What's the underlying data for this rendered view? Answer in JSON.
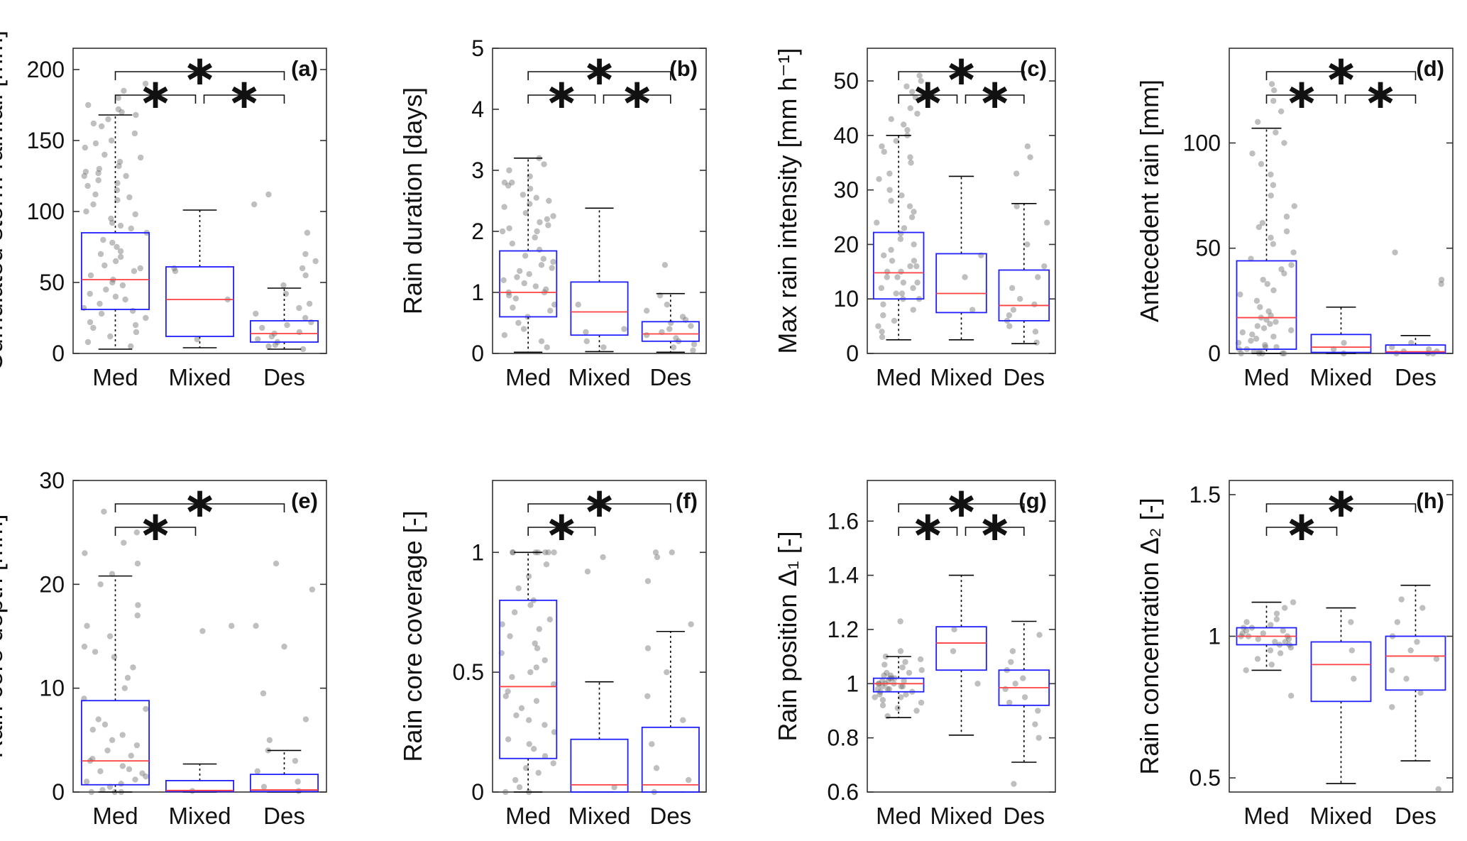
{
  "figure": {
    "categories": [
      "Med",
      "Mixed",
      "Des"
    ],
    "colors": {
      "box": "#1f1fff",
      "median": "#ff4040",
      "whisker": "#000000",
      "points": "#666666",
      "background": "#ffffff"
    },
    "significance_marker": "∗"
  },
  "chart_data": [
    {
      "type": "box",
      "panel_label": "(a)",
      "ylabel": "Cumulated storm rainfall [mm]",
      "ylim": [
        0,
        215
      ],
      "yticks": [
        0,
        50,
        100,
        150,
        200
      ],
      "ytick_labels": [
        "0",
        "50",
        "100",
        "150",
        "200"
      ],
      "series": [
        {
          "name": "Med",
          "q1": 31,
          "median": 52,
          "q3": 85,
          "whisker_low": 3,
          "whisker_high": 168,
          "points": [
            5,
            8,
            12,
            15,
            18,
            20,
            22,
            25,
            28,
            30,
            32,
            35,
            38,
            40,
            42,
            45,
            48,
            50,
            52,
            55,
            58,
            60,
            62,
            65,
            68,
            70,
            72,
            75,
            78,
            80,
            85,
            88,
            90,
            92,
            95,
            98,
            100,
            105,
            108,
            110,
            112,
            115,
            118,
            120,
            122,
            125,
            125,
            127,
            128,
            130,
            132,
            135,
            138,
            140,
            145,
            148,
            150,
            155,
            160,
            162,
            165,
            168,
            170,
            172,
            175,
            180,
            185,
            190
          ]
        },
        {
          "name": "Mixed",
          "q1": 12,
          "median": 38,
          "q3": 61,
          "whisker_low": 4,
          "whisker_high": 101,
          "points": [
            10,
            38,
            58,
            60
          ]
        },
        {
          "name": "Des",
          "q1": 8,
          "median": 14,
          "q3": 23,
          "whisker_low": 3,
          "whisker_high": 46,
          "points": [
            3,
            5,
            6,
            8,
            10,
            12,
            14,
            15,
            18,
            20,
            22,
            25,
            28,
            32,
            35,
            42,
            48,
            55,
            60,
            65,
            70,
            85,
            105,
            112
          ]
        }
      ],
      "significance": [
        {
          "from": "Med",
          "to": "Mixed",
          "level": 1
        },
        {
          "from": "Mixed",
          "to": "Des",
          "level": 1
        },
        {
          "from": "Med",
          "to": "Des",
          "level": 2
        }
      ]
    },
    {
      "type": "box",
      "panel_label": "(b)",
      "ylabel": "Rain duration [days]",
      "ylim": [
        0,
        5
      ],
      "yticks": [
        0,
        1,
        2,
        3,
        4,
        5
      ],
      "ytick_labels": [
        "0",
        "1",
        "2",
        "3",
        "4",
        "5"
      ],
      "series": [
        {
          "name": "Med",
          "q1": 0.6,
          "median": 1.0,
          "q3": 1.68,
          "whisker_low": 0.02,
          "whisker_high": 3.2,
          "points": [
            0.1,
            0.2,
            0.3,
            0.4,
            0.5,
            0.6,
            0.7,
            0.75,
            0.8,
            0.9,
            1.0,
            1.0,
            1.1,
            1.2,
            1.3,
            1.4,
            1.5,
            1.6,
            1.7,
            1.8,
            1.9,
            2.0,
            2.0,
            2.1,
            2.2,
            2.3,
            2.4,
            2.5,
            2.6,
            2.7,
            2.75,
            2.8,
            2.8,
            2.9,
            3.0,
            3.1,
            3.2,
            0.95,
            1.05,
            1.15,
            1.25,
            1.35,
            1.45,
            1.55,
            2.05,
            2.15,
            2.25,
            2.45,
            2.55
          ]
        },
        {
          "name": "Mixed",
          "q1": 0.3,
          "median": 0.68,
          "q3": 1.17,
          "whisker_low": 0.03,
          "whisker_high": 2.38,
          "points": [
            0.1,
            0.2,
            0.35,
            0.4,
            0.8
          ]
        },
        {
          "name": "Des",
          "q1": 0.2,
          "median": 0.32,
          "q3": 0.52,
          "whisker_low": 0.02,
          "whisker_high": 0.98,
          "points": [
            0.05,
            0.1,
            0.15,
            0.2,
            0.25,
            0.3,
            0.35,
            0.4,
            0.45,
            0.5,
            0.55,
            0.6,
            0.7,
            0.8,
            0.95,
            1.45
          ]
        }
      ],
      "significance": [
        {
          "from": "Med",
          "to": "Mixed",
          "level": 1
        },
        {
          "from": "Mixed",
          "to": "Des",
          "level": 1
        },
        {
          "from": "Med",
          "to": "Des",
          "level": 2
        }
      ]
    },
    {
      "type": "box",
      "panel_label": "(c)",
      "ylabel": "Max rain intensity [mm h⁻¹]",
      "ylim": [
        0,
        56
      ],
      "yticks": [
        0,
        10,
        20,
        30,
        40,
        50
      ],
      "ytick_labels": [
        "0",
        "10",
        "20",
        "30",
        "40",
        "50"
      ],
      "series": [
        {
          "name": "Med",
          "q1": 10,
          "median": 14.8,
          "q3": 22.2,
          "whisker_low": 2.5,
          "whisker_high": 40,
          "points": [
            3,
            4,
            5,
            6,
            7,
            8,
            9,
            10,
            10,
            11,
            11,
            12,
            12,
            13,
            13,
            14,
            14,
            15,
            15,
            16,
            16,
            17,
            17,
            18,
            19,
            20,
            21,
            22,
            23,
            24,
            25,
            26,
            27,
            28,
            29,
            30,
            32,
            33,
            35,
            36,
            37,
            38,
            39,
            40,
            41,
            42,
            43,
            44,
            45,
            47,
            48,
            49,
            50,
            51
          ]
        },
        {
          "name": "Mixed",
          "q1": 7.5,
          "median": 11,
          "q3": 18.3,
          "whisker_low": 2.5,
          "whisker_high": 32.5,
          "points": [
            8,
            14,
            18
          ]
        },
        {
          "name": "Des",
          "q1": 6,
          "median": 8.8,
          "q3": 15.3,
          "whisker_low": 1.8,
          "whisker_high": 27.5,
          "points": [
            2,
            4,
            5,
            6,
            7,
            8,
            9,
            10,
            12,
            14,
            16,
            20,
            24,
            27,
            33,
            36,
            38
          ]
        }
      ],
      "significance": [
        {
          "from": "Med",
          "to": "Mixed",
          "level": 1
        },
        {
          "from": "Mixed",
          "to": "Des",
          "level": 1
        },
        {
          "from": "Med",
          "to": "Des",
          "level": 2
        }
      ]
    },
    {
      "type": "box",
      "panel_label": "(d)",
      "ylabel": "Antecedent rain [mm]",
      "ylim": [
        0,
        145
      ],
      "yticks": [
        0,
        50,
        100
      ],
      "ytick_labels": [
        "0",
        "50",
        "100"
      ],
      "series": [
        {
          "name": "Med",
          "q1": 2,
          "median": 17,
          "q3": 44,
          "whisker_low": 0,
          "whisker_high": 107,
          "points": [
            0,
            0,
            0,
            0,
            0,
            1,
            1,
            2,
            2,
            3,
            3,
            4,
            5,
            6,
            7,
            8,
            9,
            10,
            11,
            12,
            13,
            14,
            15,
            16,
            17,
            18,
            20,
            22,
            25,
            28,
            30,
            33,
            35,
            38,
            40,
            42,
            45,
            48,
            52,
            55,
            58,
            60,
            62,
            65,
            70,
            75,
            80,
            85,
            90,
            95,
            100,
            105,
            110,
            115,
            120,
            125,
            128
          ]
        },
        {
          "name": "Mixed",
          "q1": 0.5,
          "median": 3,
          "q3": 9,
          "whisker_low": 0,
          "whisker_high": 22,
          "points": [
            0,
            2,
            5
          ]
        },
        {
          "name": "Des",
          "q1": 0.2,
          "median": 0.8,
          "q3": 4,
          "whisker_low": 0,
          "whisker_high": 8.5,
          "points": [
            0,
            0,
            0,
            1,
            1,
            2,
            3,
            5,
            33,
            35,
            48
          ]
        }
      ],
      "significance": [
        {
          "from": "Med",
          "to": "Mixed",
          "level": 1
        },
        {
          "from": "Mixed",
          "to": "Des",
          "level": 1
        },
        {
          "from": "Med",
          "to": "Des",
          "level": 2
        }
      ]
    },
    {
      "type": "box",
      "panel_label": "(e)",
      "ylabel": "Rain core depth [mm]",
      "ylim": [
        0,
        30
      ],
      "yticks": [
        0,
        10,
        20,
        30
      ],
      "ytick_labels": [
        "0",
        "10",
        "20",
        "30"
      ],
      "series": [
        {
          "name": "Med",
          "q1": 0.7,
          "median": 3,
          "q3": 8.8,
          "whisker_low": 0,
          "whisker_high": 20.8,
          "points": [
            0,
            0,
            0,
            0.2,
            0.5,
            0.8,
            1,
            1.2,
            1.5,
            1.8,
            2,
            2.2,
            2.5,
            3,
            3.2,
            3.5,
            4,
            4.5,
            5,
            5.5,
            6,
            6.5,
            7,
            8,
            9,
            10,
            11,
            12,
            13,
            13.5,
            14,
            15,
            16,
            17,
            18,
            20,
            21,
            22,
            23,
            24,
            25,
            27
          ]
        },
        {
          "name": "Mixed",
          "q1": 0.05,
          "median": 0.15,
          "q3": 1.1,
          "whisker_low": 0,
          "whisker_high": 2.7,
          "points": [
            0.1,
            15.5,
            16
          ]
        },
        {
          "name": "Des",
          "q1": 0.05,
          "median": 0.2,
          "q3": 1.7,
          "whisker_low": 0,
          "whisker_high": 4,
          "points": [
            0.1,
            0.5,
            1,
            2,
            3,
            4,
            5,
            7,
            9.5,
            14,
            16,
            19.5,
            22
          ]
        }
      ],
      "significance": [
        {
          "from": "Med",
          "to": "Mixed",
          "level": 1
        },
        {
          "from": "Med",
          "to": "Des",
          "level": 2
        }
      ]
    },
    {
      "type": "box",
      "panel_label": "(f)",
      "ylabel": "Rain core coverage [-]",
      "ylim": [
        0,
        1.3
      ],
      "yticks": [
        0,
        0.5,
        1
      ],
      "ytick_labels": [
        "0",
        "0.5",
        "1"
      ],
      "series": [
        {
          "name": "Med",
          "q1": 0.14,
          "median": 0.44,
          "q3": 0.8,
          "whisker_low": 0,
          "whisker_high": 1.0,
          "points": [
            0,
            0,
            0.02,
            0.05,
            0.08,
            0.1,
            0.12,
            0.15,
            0.18,
            0.2,
            0.22,
            0.25,
            0.28,
            0.3,
            0.32,
            0.35,
            0.38,
            0.4,
            0.42,
            0.45,
            0.48,
            0.5,
            0.52,
            0.55,
            0.58,
            0.6,
            0.62,
            0.65,
            0.68,
            0.7,
            0.72,
            0.75,
            0.78,
            0.8,
            0.85,
            0.9,
            0.95,
            1,
            1,
            1,
            1,
            1,
            1,
            1
          ]
        },
        {
          "name": "Mixed",
          "q1": 0,
          "median": 0.03,
          "q3": 0.22,
          "whisker_low": 0,
          "whisker_high": 0.46,
          "points": [
            0.02,
            0.92,
            0.98
          ]
        },
        {
          "name": "Des",
          "q1": 0,
          "median": 0.03,
          "q3": 0.27,
          "whisker_low": 0,
          "whisker_high": 0.67,
          "points": [
            0,
            0.05,
            0.1,
            0.2,
            0.3,
            0.4,
            0.5,
            0.6,
            0.7,
            0.88,
            0.98,
            1,
            1
          ]
        }
      ],
      "significance": [
        {
          "from": "Med",
          "to": "Mixed",
          "level": 1
        },
        {
          "from": "Med",
          "to": "Des",
          "level": 2
        }
      ]
    },
    {
      "type": "box",
      "panel_label": "(g)",
      "ylabel": "Rain position Δ₁ [-]",
      "ylim": [
        0.6,
        1.75
      ],
      "yticks": [
        0.6,
        0.8,
        1.0,
        1.2,
        1.4,
        1.6
      ],
      "ytick_labels": [
        "0.6",
        "0.8",
        "1",
        "1.2",
        "1.4",
        "1.6"
      ],
      "series": [
        {
          "name": "Med",
          "q1": 0.97,
          "median": 1.0,
          "q3": 1.02,
          "whisker_low": 0.875,
          "whisker_high": 1.1,
          "points": [
            0.88,
            0.9,
            0.91,
            0.92,
            0.93,
            0.94,
            0.95,
            0.95,
            0.96,
            0.96,
            0.97,
            0.97,
            0.98,
            0.98,
            0.98,
            0.99,
            0.99,
            0.99,
            1,
            1,
            1,
            1,
            1.01,
            1.01,
            1.01,
            1.02,
            1.02,
            1.02,
            1.03,
            1.03,
            1.04,
            1.04,
            1.05,
            1.06,
            1.07,
            1.08,
            1.09,
            1.1,
            1.12,
            1.23
          ]
        },
        {
          "name": "Mixed",
          "q1": 1.05,
          "median": 1.15,
          "q3": 1.21,
          "whisker_low": 0.81,
          "whisker_high": 1.4,
          "points": [
            1.0,
            1.12,
            1.2
          ]
        },
        {
          "name": "Des",
          "q1": 0.92,
          "median": 0.985,
          "q3": 1.05,
          "whisker_low": 0.71,
          "whisker_high": 1.23,
          "points": [
            0.63,
            0.8,
            0.85,
            0.9,
            0.93,
            0.95,
            0.98,
            1.0,
            1.02,
            1.05,
            1.08,
            1.12,
            1.18
          ]
        }
      ],
      "significance": [
        {
          "from": "Med",
          "to": "Mixed",
          "level": 1
        },
        {
          "from": "Mixed",
          "to": "Des",
          "level": 1
        },
        {
          "from": "Med",
          "to": "Des",
          "level": 2
        }
      ]
    },
    {
      "type": "box",
      "panel_label": "(h)",
      "ylabel": "Rain concentration Δ₂ [-]",
      "ylim": [
        0.45,
        1.55
      ],
      "yticks": [
        0.5,
        1.0,
        1.5
      ],
      "ytick_labels": [
        "0.5",
        "1",
        "1.5"
      ],
      "series": [
        {
          "name": "Med",
          "q1": 0.97,
          "median": 1.0,
          "q3": 1.03,
          "whisker_low": 0.88,
          "whisker_high": 1.12,
          "points": [
            0.79,
            0.88,
            0.9,
            0.92,
            0.94,
            0.95,
            0.96,
            0.97,
            0.97,
            0.98,
            0.98,
            0.99,
            0.99,
            1,
            1,
            1,
            1.01,
            1.01,
            1.02,
            1.02,
            1.03,
            1.03,
            1.04,
            1.05,
            1.06,
            1.08,
            1.1,
            1.12
          ]
        },
        {
          "name": "Mixed",
          "q1": 0.77,
          "median": 0.9,
          "q3": 0.98,
          "whisker_low": 0.48,
          "whisker_high": 1.1,
          "points": [
            0.85,
            0.95,
            1.05
          ]
        },
        {
          "name": "Des",
          "q1": 0.81,
          "median": 0.93,
          "q3": 1.0,
          "whisker_low": 0.56,
          "whisker_high": 1.18,
          "points": [
            0.46,
            0.75,
            0.8,
            0.85,
            0.88,
            0.92,
            0.95,
            0.98,
            1.0,
            1.05,
            1.1,
            1.13
          ]
        }
      ],
      "significance": [
        {
          "from": "Med",
          "to": "Mixed",
          "level": 1
        },
        {
          "from": "Med",
          "to": "Des",
          "level": 2
        }
      ]
    }
  ]
}
